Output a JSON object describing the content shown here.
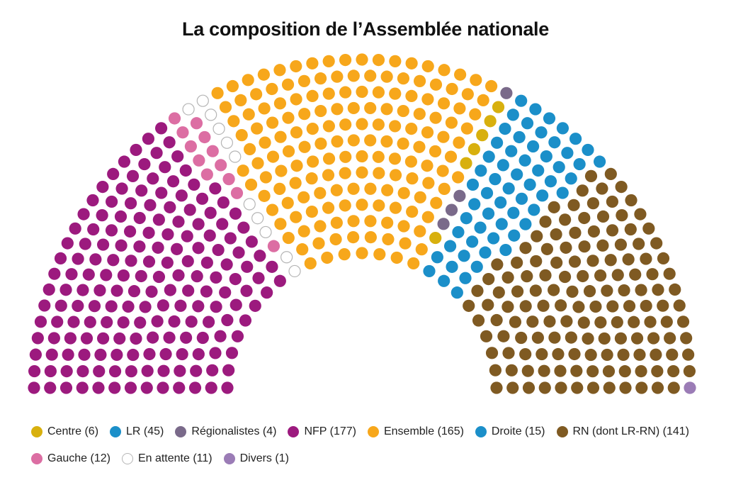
{
  "title": "La composition de l’Assemblée nationale",
  "chart_data": {
    "type": "parliament",
    "title": "La composition de l’Assemblée nationale",
    "total_seats": 577,
    "series": [
      {
        "name": "Divers",
        "label": "Divers (1)",
        "seats": 1,
        "color": "#9b7cb6",
        "side": "right"
      },
      {
        "name": "RN (dont LR-RN)",
        "label": "RN (dont LR-RN) (141)",
        "seats": 141,
        "color": "#7f5a22",
        "side": "right"
      },
      {
        "name": "Droite",
        "label": "Droite (15)",
        "seats": 15,
        "color": "#1b8fc9",
        "side": "right"
      },
      {
        "name": "LR",
        "label": "LR (45)",
        "seats": 45,
        "color": "#1b8fc9",
        "side": "right"
      },
      {
        "name": "Régionalistes",
        "label": "Régionalistes (4)",
        "seats": 4,
        "color": "#7a6a8a",
        "side": "right"
      },
      {
        "name": "Centre",
        "label": "Centre (6)",
        "seats": 6,
        "color": "#d8b00e",
        "side": "right"
      },
      {
        "name": "Ensemble",
        "label": "Ensemble (165)",
        "seats": 165,
        "color": "#f7a71b",
        "side": "center"
      },
      {
        "name": "En attente",
        "label": "En attente (11)",
        "seats": 11,
        "color": "#ffffff",
        "side": "left"
      },
      {
        "name": "Gauche",
        "label": "Gauche (12)",
        "seats": 12,
        "color": "#dc6ea3",
        "side": "left"
      },
      {
        "name": "NFP",
        "label": "NFP (177)",
        "seats": 177,
        "color": "#9c1a7e",
        "side": "left"
      }
    ]
  },
  "legend": {
    "rows": [
      [
        {
          "label": "Centre (6)",
          "color": "#d8b00e"
        },
        {
          "label": "LR (45)",
          "color": "#1b8fc9"
        },
        {
          "label": "Régionalistes (4)",
          "color": "#7a6a8a"
        },
        {
          "label": "NFP (177)",
          "color": "#9c1a7e"
        },
        {
          "label": "Ensemble (165)",
          "color": "#f7a71b"
        },
        {
          "label": "Droite (15)",
          "color": "#1b8fc9"
        },
        {
          "label": "RN (dont LR-RN) (141)",
          "color": "#7f5a22"
        }
      ],
      [
        {
          "label": "Gauche (12)",
          "color": "#dc6ea3"
        },
        {
          "label": "En attente (11)",
          "color": "#ffffff"
        },
        {
          "label": "Divers (1)",
          "color": "#9b7cb6"
        }
      ]
    ]
  }
}
